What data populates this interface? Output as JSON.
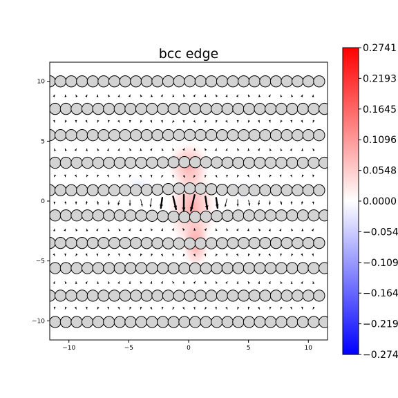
{
  "chart_data": {
    "type": "vector-field",
    "title": "bcc edge",
    "xlim": [
      -11.6,
      11.6
    ],
    "ylim": [
      -11.6,
      11.6
    ],
    "x_ticks": [
      -10,
      -5,
      0,
      5,
      10
    ],
    "y_ticks": [
      -10,
      -5,
      0,
      5,
      10
    ],
    "atom_rows_y": [
      10.0,
      7.7,
      5.5,
      3.2,
      0.9,
      -1.2,
      -3.5,
      -5.6,
      -7.9,
      -10.1
    ],
    "atom_spacing": 0.9,
    "colorbar": {
      "min": -0.2741,
      "max": 0.2741,
      "ticks": [
        -0.2741,
        -0.2193,
        -0.1645,
        -0.1096,
        -0.0548,
        0.0,
        0.0548,
        0.1096,
        0.1645,
        0.2193,
        0.2741
      ],
      "tick_labels": [
        "−0.2741",
        "−0.2193",
        "−0.1645",
        "−0.1096",
        "−0.0548",
        "0.0000",
        "0.0548",
        "0.1096",
        "0.1645",
        "0.2193",
        "0.2741"
      ],
      "colormap": "bwr"
    },
    "colors": {
      "atom_fill": "#d3d3d3",
      "atom_edge": "#000000",
      "arrow": "#000000"
    }
  }
}
